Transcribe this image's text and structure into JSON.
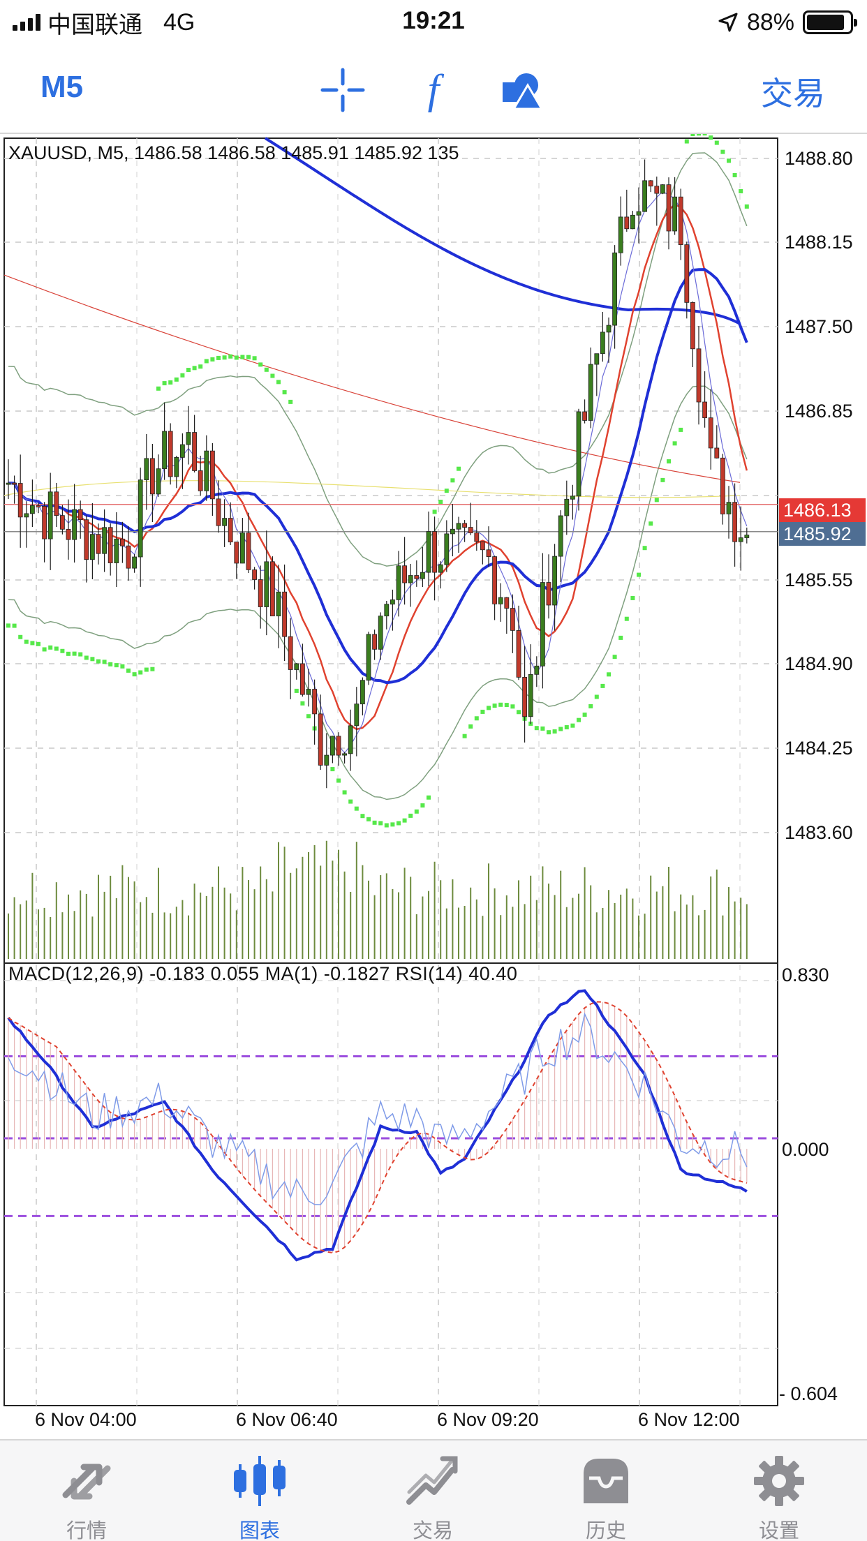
{
  "status_bar": {
    "carrier": "中国联通",
    "network": "4G",
    "time": "19:21",
    "battery": "88%",
    "battery_level": 0.88
  },
  "toolbar": {
    "timeframe": "M5",
    "icons": [
      "crosshair-icon",
      "function-icon",
      "objects-icon"
    ],
    "trade_label": "交易",
    "accent_color": "#2d6fe0"
  },
  "chart": {
    "ohlc_header": "XAUUSD, M5, 1486.58 1486.58 1485.91 1485.92 135",
    "price_axis": [
      "1488.80",
      "1488.15",
      "1487.50",
      "1486.85",
      "1485.55",
      "1484.90",
      "1484.25",
      "1483.60"
    ],
    "ask_price": "1486.13",
    "bid_price": "1485.92",
    "ask_color": "#e53935",
    "bid_color": "#4f6e93",
    "time_axis": [
      "6 Nov 04:00",
      "6 Nov 06:40",
      "6 Nov 09:20",
      "6 Nov 12:00"
    ],
    "indicator_label": "MACD(12,26,9) -0.183 0.055 MA(1) -0.1827 RSI(14) 40.40",
    "indicator_axis": [
      "0.830",
      "0.000",
      "- 0.604"
    ]
  },
  "tab_bar": {
    "tabs": [
      {
        "label": "行情",
        "icon": "quotes-arrows-icon",
        "active": false
      },
      {
        "label": "图表",
        "icon": "chart-candles-icon",
        "active": true
      },
      {
        "label": "交易",
        "icon": "trade-trend-icon",
        "active": false
      },
      {
        "label": "历史",
        "icon": "history-tray-icon",
        "active": false
      },
      {
        "label": "设置",
        "icon": "settings-gear-icon",
        "active": false
      }
    ]
  }
}
